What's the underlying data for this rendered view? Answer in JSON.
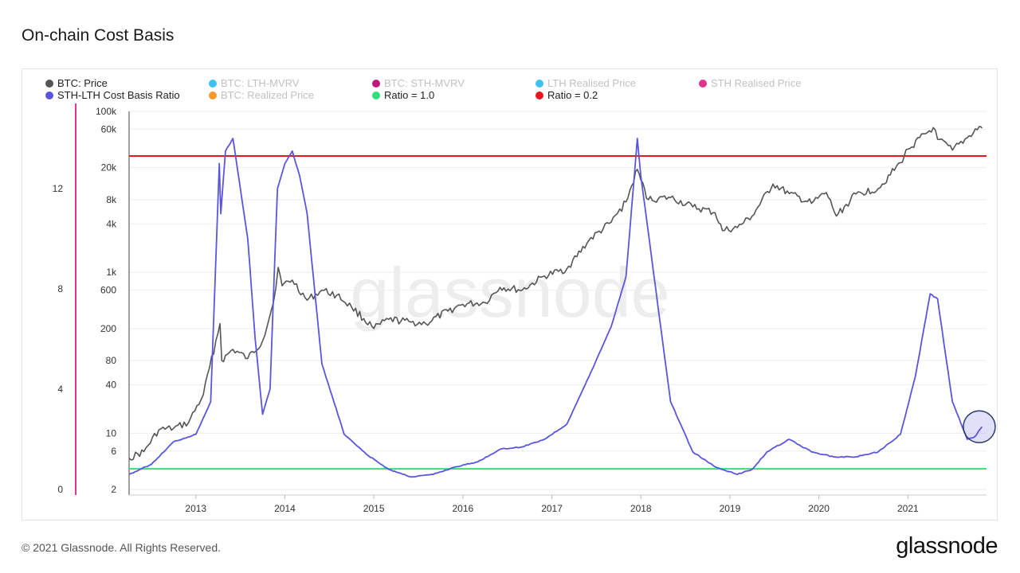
{
  "page": {
    "title": "On-chain Cost Basis",
    "copyright": "© 2021 Glassnode. All Rights Reserved.",
    "logo_text": "glassnode",
    "watermark": "glassnode"
  },
  "legend": [
    {
      "label": "BTC: Price",
      "color": "#555555",
      "active": true
    },
    {
      "label": "BTC: LTH-MVRV",
      "color": "#3ec1f2",
      "active": false
    },
    {
      "label": "BTC: STH-MVRV",
      "color": "#c2187a",
      "active": false
    },
    {
      "label": "LTH Realised Price",
      "color": "#3ec1f2",
      "active": false
    },
    {
      "label": "STH Realised Price",
      "color": "#e0338d",
      "active": false
    },
    {
      "label": "STH-LTH Cost Basis Ratio",
      "color": "#5a55e0",
      "active": true
    },
    {
      "label": "BTC: Realized Price",
      "color": "#f59a2e",
      "active": false
    },
    {
      "label": "Ratio = 1.0",
      "color": "#2fe07a",
      "active": true
    },
    {
      "label": "Ratio = 0.2",
      "color": "#e8141e",
      "active": true
    }
  ],
  "chart_data": {
    "type": "line",
    "title": "On-chain Cost Basis",
    "x_axis": {
      "ticks": [
        "2013",
        "2014",
        "2015",
        "2016",
        "2017",
        "2018",
        "2019",
        "2020",
        "2021"
      ],
      "range": [
        "2012-04",
        "2021-11"
      ]
    },
    "y_axis_price": {
      "scale": "log",
      "ticks": [
        "2",
        "6",
        "10",
        "40",
        "80",
        "200",
        "600",
        "1k",
        "4k",
        "8k",
        "20k",
        "60k",
        "100k"
      ],
      "range": [
        2,
        100000
      ]
    },
    "y_axis_ratio": {
      "scale": "linear",
      "ticks": [
        "0",
        "4",
        "8",
        "12"
      ],
      "range": [
        0,
        15
      ]
    },
    "grid": true,
    "series": [
      {
        "name": "BTC: Price",
        "color": "#555555",
        "axis": "price",
        "points": [
          [
            "2012-04",
            4.9
          ],
          [
            "2012-06",
            5.9
          ],
          [
            "2012-08",
            11
          ],
          [
            "2012-10",
            11.5
          ],
          [
            "2012-12",
            13.5
          ],
          [
            "2013-02",
            30
          ],
          [
            "2013-04-09",
            230
          ],
          [
            "2013-04-16",
            80
          ],
          [
            "2013-06",
            110
          ],
          [
            "2013-08",
            85
          ],
          [
            "2013-10",
            140
          ],
          [
            "2013-11-15",
            420
          ],
          [
            "2013-12-04",
            1150
          ],
          [
            "2013-12-20",
            680
          ],
          [
            "2014-02",
            800
          ],
          [
            "2014-04",
            450
          ],
          [
            "2014-06",
            600
          ],
          [
            "2014-08",
            520
          ],
          [
            "2014-10",
            370
          ],
          [
            "2015-01",
            200
          ],
          [
            "2015-03",
            260
          ],
          [
            "2015-06",
            240
          ],
          [
            "2015-08",
            230
          ],
          [
            "2015-11",
            330
          ],
          [
            "2016-01",
            400
          ],
          [
            "2016-04",
            420
          ],
          [
            "2016-06",
            650
          ],
          [
            "2016-09",
            600
          ],
          [
            "2016-12",
            900
          ],
          [
            "2017-03",
            1100
          ],
          [
            "2017-06",
            2500
          ],
          [
            "2017-09",
            4200
          ],
          [
            "2017-11",
            7500
          ],
          [
            "2017-12-17",
            19000
          ],
          [
            "2018-01",
            14000
          ],
          [
            "2018-02",
            8000
          ],
          [
            "2018-05",
            8500
          ],
          [
            "2018-08",
            6500
          ],
          [
            "2018-11",
            5500
          ],
          [
            "2018-12",
            3300
          ],
          [
            "2019-02",
            3600
          ],
          [
            "2019-04",
            5000
          ],
          [
            "2019-06-26",
            12500
          ],
          [
            "2019-09",
            9500
          ],
          [
            "2019-12",
            7200
          ],
          [
            "2020-02",
            9800
          ],
          [
            "2020-03-12",
            5000
          ],
          [
            "2020-06",
            9400
          ],
          [
            "2020-09",
            11000
          ],
          [
            "2020-12",
            23000
          ],
          [
            "2021-01",
            34000
          ],
          [
            "2021-04-14",
            63000
          ],
          [
            "2021-05",
            45000
          ],
          [
            "2021-07",
            33000
          ],
          [
            "2021-09",
            47000
          ],
          [
            "2021-10-20",
            65000
          ],
          [
            "2021-11",
            62000
          ]
        ]
      },
      {
        "name": "STH-LTH Cost Basis Ratio",
        "color": "#5a55e0",
        "axis": "ratio",
        "points": [
          [
            "2012-04",
            0.6
          ],
          [
            "2012-07",
            1.0
          ],
          [
            "2012-10",
            1.9
          ],
          [
            "2013-01",
            2.2
          ],
          [
            "2013-03",
            3.5
          ],
          [
            "2013-04-06",
            13.0
          ],
          [
            "2013-04-12",
            11.0
          ],
          [
            "2013-05",
            13.5
          ],
          [
            "2013-06",
            14.0
          ],
          [
            "2013-08",
            10.0
          ],
          [
            "2013-09",
            6.0
          ],
          [
            "2013-10",
            3.0
          ],
          [
            "2013-11",
            4.0
          ],
          [
            "2013-12",
            12.0
          ],
          [
            "2014-01",
            13.0
          ],
          [
            "2014-02",
            13.5
          ],
          [
            "2014-03",
            12.5
          ],
          [
            "2014-04",
            11.0
          ],
          [
            "2014-06",
            5.0
          ],
          [
            "2014-09",
            2.2
          ],
          [
            "2014-12",
            1.4
          ],
          [
            "2015-03",
            0.8
          ],
          [
            "2015-06",
            0.5
          ],
          [
            "2015-09",
            0.6
          ],
          [
            "2015-12",
            0.9
          ],
          [
            "2016-03",
            1.1
          ],
          [
            "2016-06",
            1.6
          ],
          [
            "2016-09",
            1.7
          ],
          [
            "2016-12",
            2.0
          ],
          [
            "2017-03",
            2.6
          ],
          [
            "2017-06",
            4.5
          ],
          [
            "2017-09",
            6.5
          ],
          [
            "2017-11",
            8.5
          ],
          [
            "2017-12-17",
            14.0
          ],
          [
            "2018-01",
            12.5
          ],
          [
            "2018-03",
            8.0
          ],
          [
            "2018-05",
            3.5
          ],
          [
            "2018-08",
            1.5
          ],
          [
            "2018-11",
            0.9
          ],
          [
            "2019-02",
            0.6
          ],
          [
            "2019-04",
            0.8
          ],
          [
            "2019-06",
            1.5
          ],
          [
            "2019-09",
            2.0
          ],
          [
            "2019-12",
            1.5
          ],
          [
            "2020-03",
            1.3
          ],
          [
            "2020-06",
            1.3
          ],
          [
            "2020-09",
            1.5
          ],
          [
            "2020-12",
            2.2
          ],
          [
            "2021-02",
            4.5
          ],
          [
            "2021-04",
            7.8
          ],
          [
            "2021-05",
            7.6
          ],
          [
            "2021-07",
            3.5
          ],
          [
            "2021-09",
            2.0
          ],
          [
            "2021-10",
            2.1
          ],
          [
            "2021-11",
            2.5
          ]
        ]
      },
      {
        "name": "Ratio = 1.0",
        "color": "#2fe07a",
        "axis": "ratio",
        "value": 0.82
      },
      {
        "name": "Ratio = 0.2",
        "color": "#e8141e",
        "axis": "ratio",
        "value": 13.3
      }
    ],
    "annotations": [
      {
        "type": "circle",
        "at": [
          "2021-10-20",
          2.5
        ],
        "color": "#5a55e0"
      }
    ]
  }
}
